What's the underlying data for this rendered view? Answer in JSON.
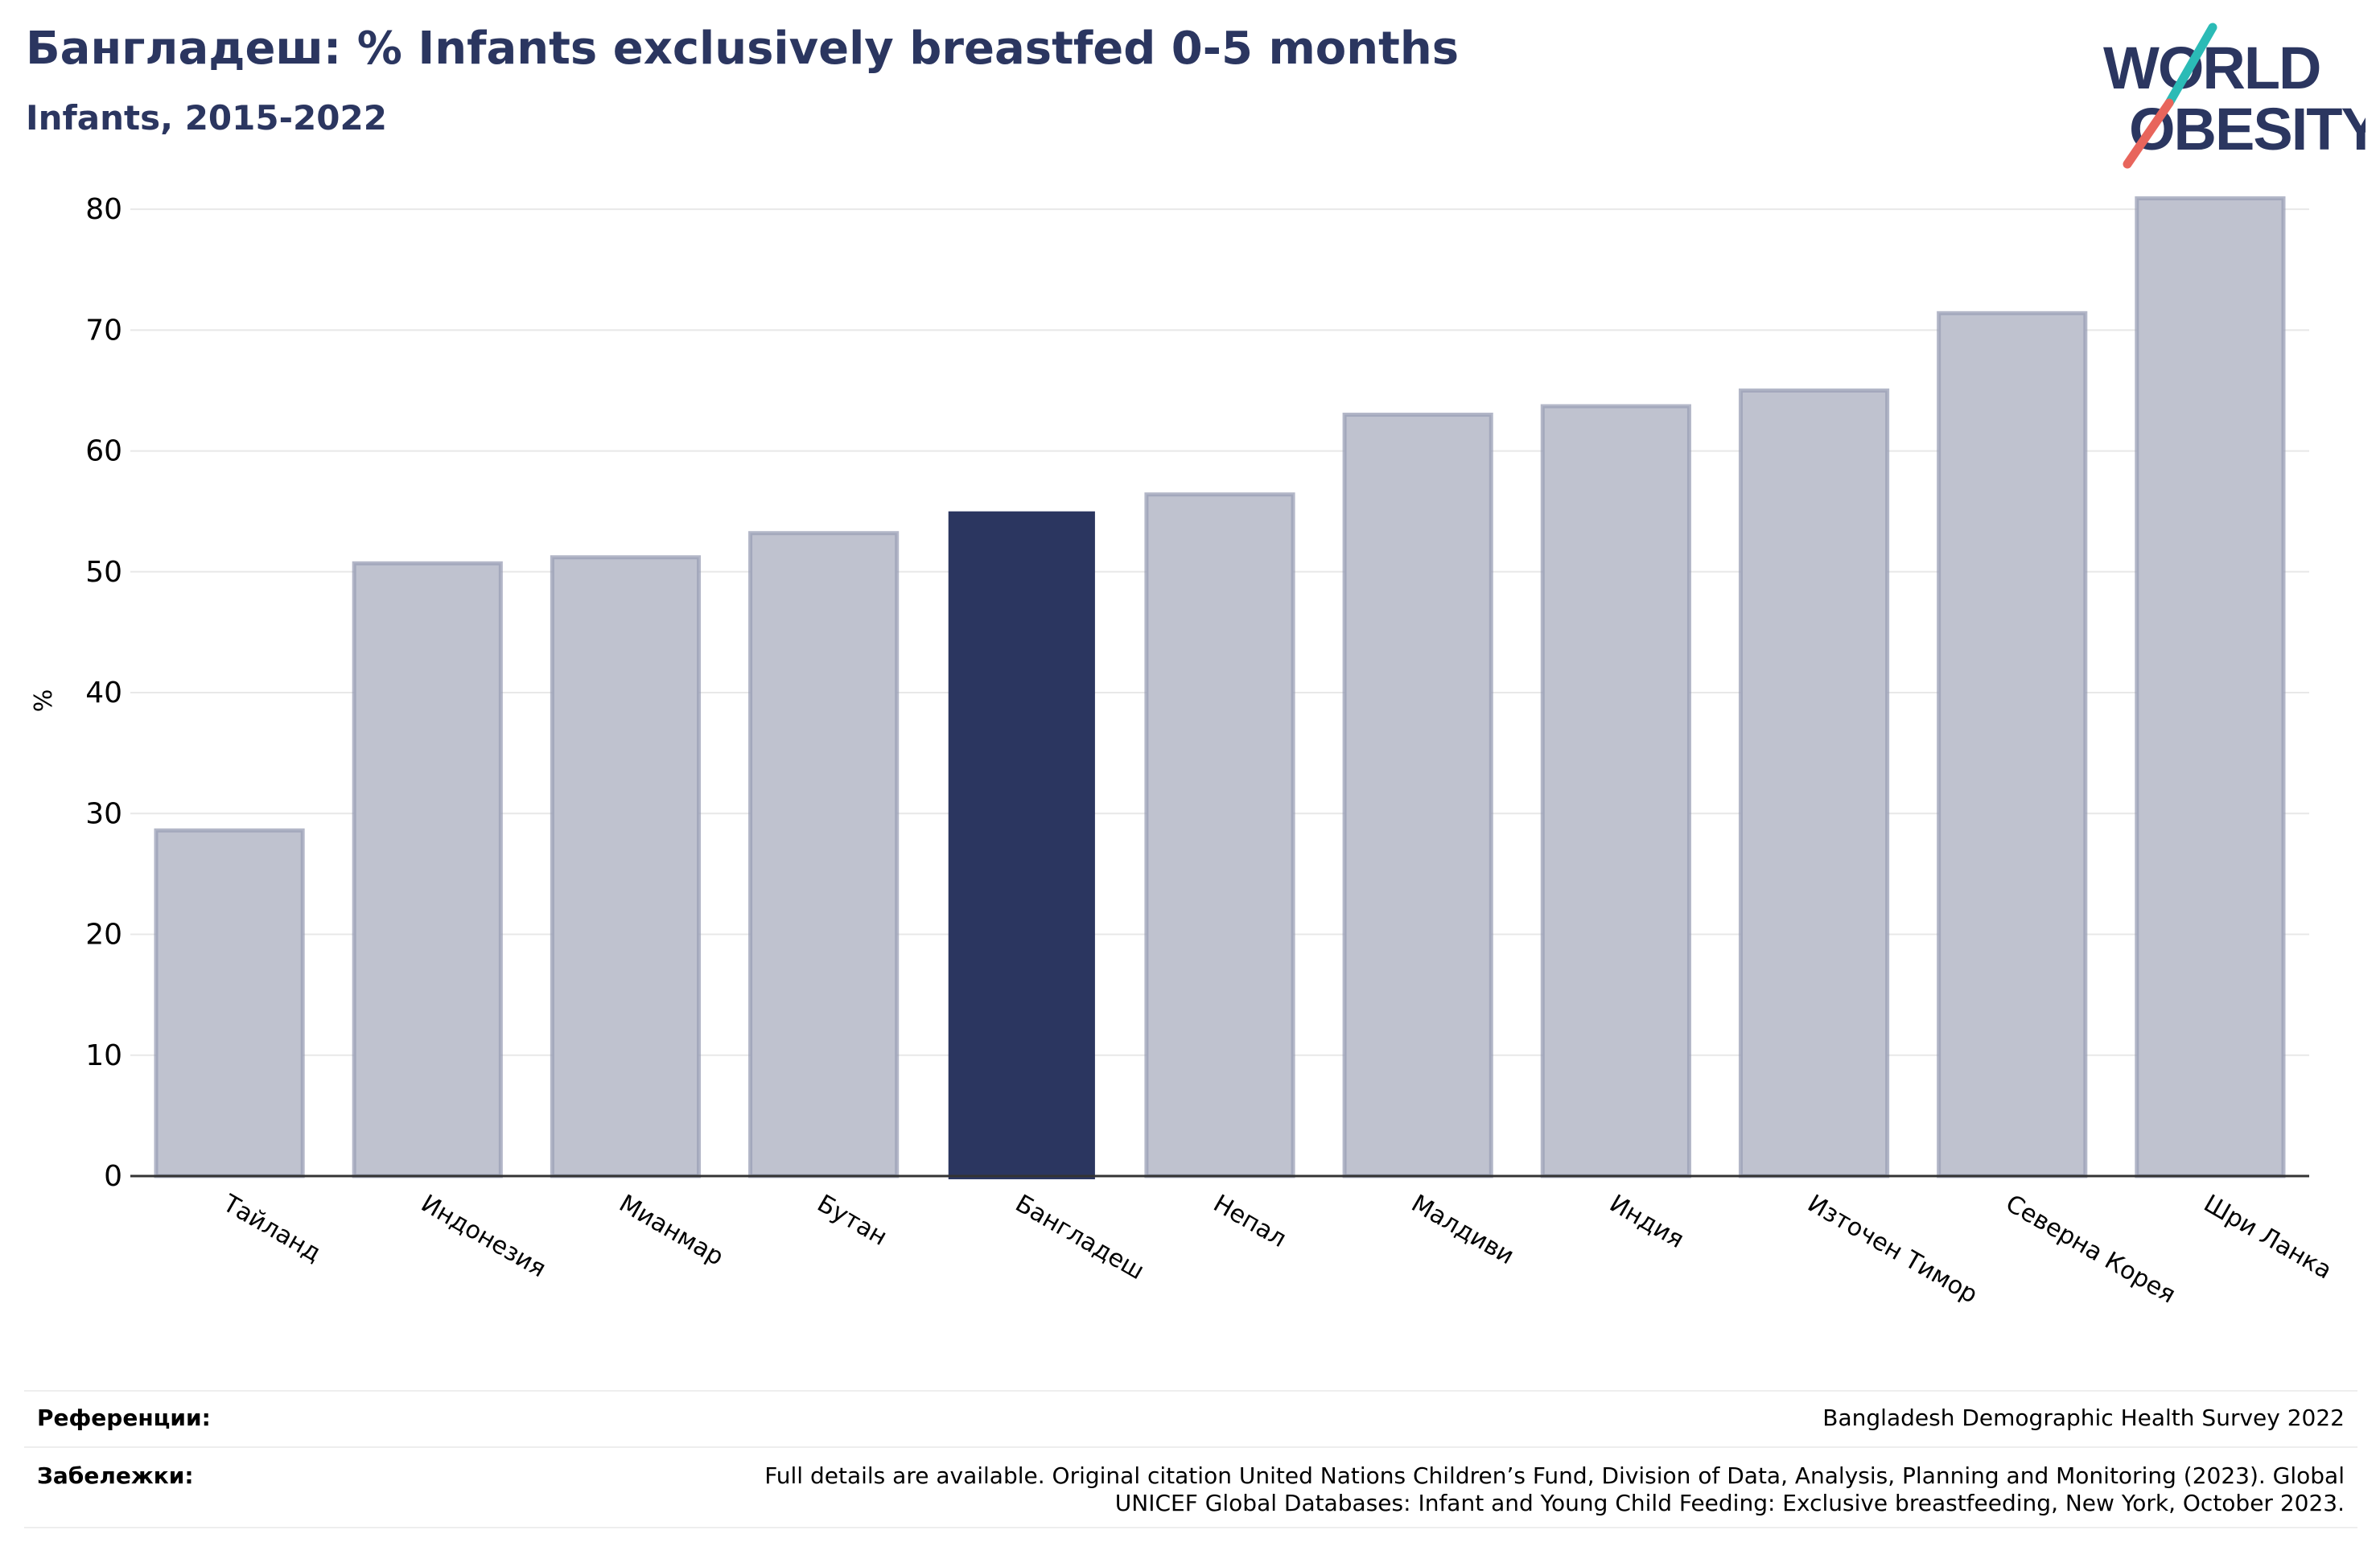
{
  "header": {
    "title": "Бангладеш: % Infants exclusively breastfed 0-5 months",
    "subtitle": "Infants, 2015-2022"
  },
  "logo": {
    "line1": "WORLD",
    "line2": "OBESITY",
    "colors": {
      "text": "#2b3660",
      "slash_top": "#2bbbb6",
      "slash_bottom": "#e8655c"
    }
  },
  "chart_data": {
    "type": "bar",
    "categories": [
      "Тайланд",
      "Индонезия",
      "Мианмар",
      "Бутан",
      "Бангладеш",
      "Непал",
      "Малдиви",
      "Индия",
      "Източен Тимор",
      "Северна Корея",
      "Шри Ланка"
    ],
    "values": [
      28.6,
      50.7,
      51.2,
      53.2,
      55.0,
      56.4,
      63.0,
      63.7,
      65.0,
      71.4,
      80.9
    ],
    "highlight": "Бангладеш",
    "ylabel": "%",
    "ylim": [
      0,
      84
    ],
    "yticks": [
      0,
      10,
      20,
      30,
      40,
      50,
      60,
      70,
      80
    ],
    "grid": true,
    "colors": {
      "bar": "#bfc2cf",
      "bar_edge": "#9a9fb6",
      "highlight": "#2b3660",
      "grid": "#e8e8e8",
      "axis": "#333333"
    }
  },
  "footer": {
    "references_label": "Референции:",
    "references_text": "Bangladesh Demographic Health Survey 2022",
    "notes_label": "Забележки:",
    "notes_line1": "Full details are available. Original citation United Nations Children’s Fund, Division of Data, Analysis, Planning and Monitoring (2023). Global",
    "notes_line2": "UNICEF Global Databases: Infant and Young Child Feeding: Exclusive breastfeeding, New York, October 2023."
  }
}
